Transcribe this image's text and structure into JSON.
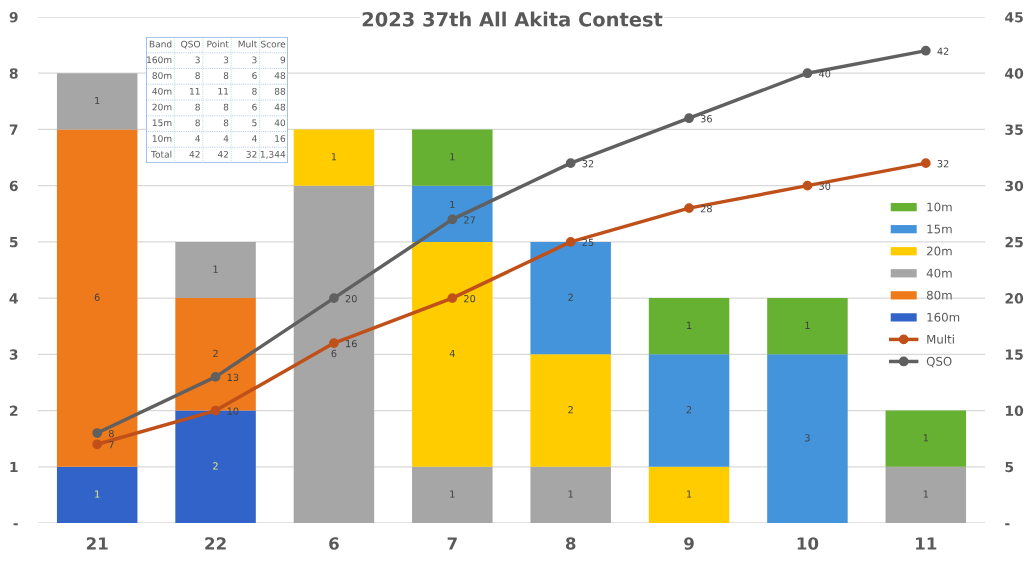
{
  "chart_data": {
    "type": "bar",
    "title": "2023 37th All Akita Contest",
    "stacked": true,
    "data_labels": true,
    "grid": "y",
    "legend": "right",
    "marker": "circle",
    "categories": [
      "21",
      "22",
      "6",
      "7",
      "8",
      "9",
      "10",
      "11"
    ],
    "ylim": [
      0,
      9
    ],
    "yticks": [
      {
        "value": 0,
        "label": "-"
      },
      1,
      2,
      3,
      4,
      5,
      6,
      7,
      8,
      9
    ],
    "y2lim": [
      0,
      45
    ],
    "y2ticks": [
      {
        "value": 0,
        "label": "-"
      },
      5,
      10,
      15,
      20,
      25,
      30,
      35,
      40,
      45
    ],
    "series": [
      {
        "name": "160m",
        "color": "#3263c8",
        "values": [
          1,
          2,
          null,
          null,
          null,
          null,
          null,
          null
        ]
      },
      {
        "name": "80m",
        "color": "#ee7a1c",
        "values": [
          6,
          2,
          null,
          null,
          null,
          null,
          null,
          null
        ]
      },
      {
        "name": "40m",
        "color": "#a6a6a6",
        "values": [
          1,
          1,
          6,
          1,
          1,
          null,
          null,
          1
        ]
      },
      {
        "name": "20m",
        "color": "#ffcc00",
        "values": [
          null,
          null,
          1,
          4,
          2,
          1,
          null,
          null
        ]
      },
      {
        "name": "15m",
        "color": "#4494dc",
        "values": [
          null,
          null,
          null,
          1,
          2,
          2,
          3,
          null
        ]
      },
      {
        "name": "10m",
        "color": "#66b032",
        "values": [
          null,
          null,
          null,
          1,
          null,
          1,
          1,
          1
        ]
      },
      {
        "name": "Multi",
        "type": "line",
        "axis": "y2",
        "color": "#c0501a",
        "values": [
          7,
          10,
          16,
          20,
          25,
          28,
          30,
          32
        ]
      },
      {
        "name": "QSO",
        "type": "line",
        "axis": "y2",
        "color": "#606060",
        "values": [
          8,
          13,
          20,
          27,
          32,
          36,
          40,
          42
        ]
      }
    ],
    "annotations": [
      "Band",
      "QSO",
      "Point",
      "Mult",
      "Score",
      "160m",
      "3",
      "3",
      "3",
      "9",
      "80m",
      "8",
      "8",
      "6",
      "48",
      "40m",
      "11",
      "11",
      "8",
      "88",
      "20m",
      "8",
      "8",
      "6",
      "48",
      "15m",
      "8",
      "8",
      "5",
      "40",
      "10m",
      "4",
      "4",
      "4",
      "16",
      "Total",
      "42",
      "42",
      "32",
      "1,344"
    ]
  }
}
